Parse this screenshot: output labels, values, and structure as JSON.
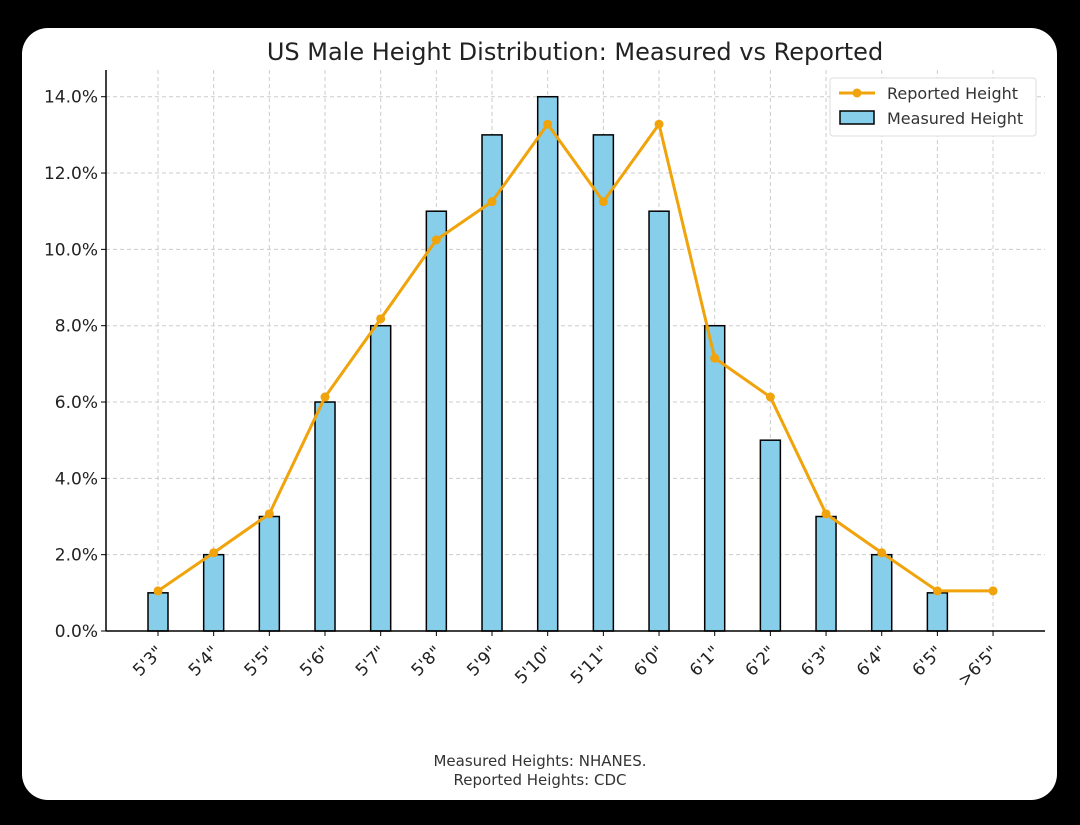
{
  "chart_data": {
    "type": "bar",
    "title": "US Male Height Distribution: Measured vs Reported",
    "xlabel": "",
    "ylabel": "",
    "categories": [
      "5'3\"",
      "5'4\"",
      "5'5\"",
      "5'6\"",
      "5'7\"",
      "5'8\"",
      "5'9\"",
      "5'10\"",
      "5'11\"",
      "6'0\"",
      "6'1\"",
      "6'2\"",
      "6'3\"",
      "6'4\"",
      "6'5\"",
      ">6'5\""
    ],
    "series": [
      {
        "name": "Measured Height",
        "type": "bar",
        "color": "#87CEEB",
        "values": [
          1,
          2,
          3,
          6,
          8,
          11,
          13,
          14,
          13,
          11,
          8,
          5,
          3,
          2,
          1,
          0
        ]
      },
      {
        "name": "Reported Height",
        "type": "line",
        "color": "#F0A30A",
        "values": [
          1.05,
          2.05,
          3.07,
          6.13,
          8.18,
          10.25,
          11.25,
          13.28,
          11.25,
          13.28,
          7.15,
          6.13,
          3.07,
          2.05,
          1.05,
          1.05
        ]
      }
    ],
    "ylim": [
      0,
      14.7
    ],
    "yticks": [
      "0.0%",
      "2.0%",
      "4.0%",
      "6.0%",
      "8.0%",
      "10.0%",
      "12.0%",
      "14.0%"
    ],
    "ytick_values": [
      0,
      2,
      4,
      6,
      8,
      10,
      12,
      14
    ],
    "grid": true,
    "legend": "top-right",
    "footnote": [
      "Measured Heights: NHANES.",
      "Reported Heights: CDC"
    ]
  }
}
